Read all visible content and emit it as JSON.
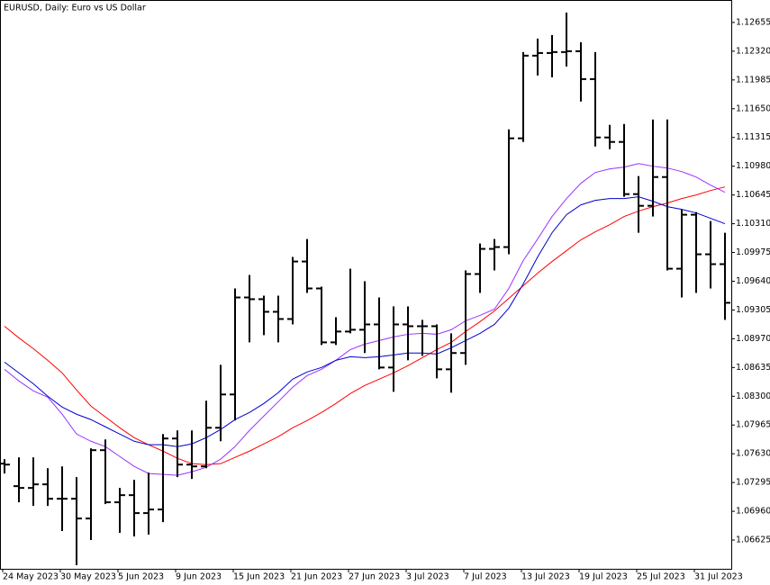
{
  "chart_data": {
    "type": "ohlc",
    "title": "EURUSD, Daily:  Euro vs US Dollar",
    "categories": [
      "24 May 2023",
      null,
      null,
      null,
      "30 May 2023",
      null,
      null,
      null,
      "5 Jun 2023",
      null,
      null,
      null,
      "9 Jun 2023",
      null,
      null,
      null,
      "15 Jun 2023",
      null,
      null,
      null,
      "21 Jun 2023",
      null,
      null,
      null,
      "27 Jun 2023",
      null,
      null,
      null,
      "3 Jul 2023",
      null,
      null,
      null,
      "7 Jul 2023",
      null,
      null,
      null,
      "13 Jul 2023",
      null,
      null,
      null,
      "19 Jul 2023",
      null,
      null,
      null,
      "25 Jul 2023",
      null,
      null,
      null,
      "31 Jul 2023",
      null,
      null
    ],
    "open": [
      1.07515,
      1.07253,
      1.07232,
      1.07274,
      1.07106,
      1.07106,
      1.06876,
      1.07672,
      1.07065,
      1.07148,
      1.06939,
      1.06981,
      1.07808,
      1.07504,
      1.07483,
      1.07933,
      1.08321,
      1.09451,
      1.09431,
      1.09284,
      1.092,
      1.0987,
      1.09556,
      1.08928,
      1.09054,
      1.09075,
      1.09137,
      1.08635,
      1.09137,
      1.09116,
      1.09116,
      1.08614,
      1.08804,
      1.09724,
      1.10017,
      1.10038,
      1.11305,
      1.12268,
      1.12299,
      1.1231,
      1.1232,
      1.11995,
      1.11315,
      1.11263,
      1.10655,
      1.10519,
      1.10854,
      1.09786,
      1.10415,
      1.09954,
      1.09839
    ],
    "high": [
      1.07567,
      1.07588,
      1.07588,
      1.07462,
      1.07483,
      1.07358,
      1.07693,
      1.07797,
      1.07232,
      1.07326,
      1.0741,
      1.0786,
      1.07902,
      1.07902,
      1.08248,
      1.08666,
      1.09556,
      1.09713,
      1.09472,
      1.09472,
      1.09923,
      1.10132,
      1.09577,
      1.09221,
      1.09786,
      1.0964,
      1.09451,
      1.09347,
      1.09347,
      1.0919,
      1.09137,
      1.09033,
      1.09766,
      1.1008,
      1.10132,
      1.11409,
      1.1231,
      1.12467,
      1.12508,
      1.1277,
      1.12425,
      1.1231,
      1.11462,
      1.11472,
      1.10865,
      1.11524,
      1.11524,
      1.10477,
      1.10446,
      1.10341,
      1.10205
    ],
    "low": [
      1.074,
      1.07065,
      1.07023,
      1.07023,
      1.0673,
      1.06332,
      1.06625,
      1.07044,
      1.06709,
      1.06667,
      1.06688,
      1.06834,
      1.07358,
      1.07337,
      1.07462,
      1.07776,
      1.08017,
      1.08928,
      1.09012,
      1.08928,
      1.09137,
      1.09504,
      1.08897,
      1.08897,
      1.09033,
      1.08804,
      1.08614,
      1.08352,
      1.08719,
      1.08771,
      1.08509,
      1.08342,
      1.08666,
      1.09504,
      1.09766,
      1.09954,
      1.11263,
      1.12037,
      1.12016,
      1.12142,
      1.11734,
      1.1121,
      1.11179,
      1.10624,
      1.10205,
      1.10394,
      1.09766,
      1.09451,
      1.09504,
      1.09556,
      1.0919
    ],
    "close": [
      1.07504,
      1.07232,
      1.07274,
      1.07106,
      1.07106,
      1.06876,
      1.07672,
      1.07065,
      1.07148,
      1.06939,
      1.06981,
      1.07808,
      1.07504,
      1.07483,
      1.07933,
      1.08321,
      1.09451,
      1.09431,
      1.09284,
      1.092,
      1.0987,
      1.09556,
      1.08928,
      1.09054,
      1.09075,
      1.09137,
      1.08635,
      1.09137,
      1.09116,
      1.09116,
      1.08614,
      1.08804,
      1.09724,
      1.10017,
      1.10038,
      1.11305,
      1.12268,
      1.12299,
      1.1231,
      1.1232,
      1.11995,
      1.11315,
      1.11263,
      1.10655,
      1.10519,
      1.10854,
      1.09786,
      1.10415,
      1.09954,
      1.09839,
      1.09389
    ],
    "bar_color": "#000000",
    "series": [
      {
        "color": "#ff0000",
        "values": [
          1.09116,
          1.0898,
          1.08855,
          1.08719,
          1.08572,
          1.08373,
          1.08185,
          1.08059,
          1.07933,
          1.07818,
          1.07735,
          1.07661,
          1.07578,
          1.07515,
          1.07504,
          1.07515,
          1.07588,
          1.07661,
          1.07745,
          1.07829,
          1.07933,
          1.08017,
          1.08111,
          1.08216,
          1.08331,
          1.08426,
          1.08499,
          1.08572,
          1.08656,
          1.0875,
          1.08844,
          1.08928,
          1.09054,
          1.09169,
          1.09294,
          1.09441,
          1.09588,
          1.09734,
          1.0987,
          1.09996,
          1.10122,
          1.10216,
          1.10299,
          1.10394,
          1.10457,
          1.10509,
          1.10551,
          1.10603,
          1.10645,
          1.10697,
          1.10739
        ]
      },
      {
        "color": "#9933ff",
        "values": [
          1.08614,
          1.08478,
          1.08363,
          1.08289,
          1.08091,
          1.0786,
          1.07776,
          1.07714,
          1.07598,
          1.07483,
          1.074,
          1.07389,
          1.07379,
          1.0742,
          1.07473,
          1.07567,
          1.07714,
          1.07902,
          1.0807,
          1.08237,
          1.08405,
          1.08541,
          1.08614,
          1.08719,
          1.08844,
          1.08907,
          1.08949,
          1.08991,
          1.09022,
          1.09033,
          1.09022,
          1.09075,
          1.09179,
          1.09242,
          1.09315,
          1.09556,
          1.09881,
          1.10132,
          1.10394,
          1.10603,
          1.10781,
          1.10907,
          1.10949,
          1.10969,
          1.11011,
          1.1098,
          1.10959,
          1.10917,
          1.10854,
          1.1076,
          1.10676
        ]
      },
      {
        "color": "#0000cc",
        "values": [
          1.08698,
          1.08572,
          1.08446,
          1.083,
          1.08174,
          1.08091,
          1.08028,
          1.07944,
          1.0786,
          1.07776,
          1.07735,
          1.07735,
          1.07714,
          1.07745,
          1.07818,
          1.07913,
          1.08028,
          1.08111,
          1.08216,
          1.08342,
          1.08499,
          1.08583,
          1.08635,
          1.08719,
          1.08761,
          1.0875,
          1.08761,
          1.08781,
          1.08804,
          1.08804,
          1.08792,
          1.08865,
          1.08949,
          1.09033,
          1.09137,
          1.09326,
          1.09609,
          1.09923,
          1.10205,
          1.10415,
          1.1053,
          1.10582,
          1.10603,
          1.10603,
          1.10624,
          1.10572,
          1.10509,
          1.10477,
          1.10436,
          1.10373,
          1.1031
        ]
      }
    ],
    "ylim": [
      1.0629,
      1.12906
    ],
    "yticks": [
      1.12655,
      {
        "value": 1.1232,
        "label": "1.12320"
      },
      1.11985,
      {
        "value": 1.1165,
        "label": "1.11650"
      },
      1.11315,
      {
        "value": 1.1098,
        "label": "1.10980"
      },
      1.10645,
      {
        "value": 1.1031,
        "label": "1.10310"
      },
      1.09975,
      {
        "value": 1.0964,
        "label": "1.09640"
      },
      1.09305,
      {
        "value": 1.0897,
        "label": "1.08970"
      },
      1.08635,
      {
        "value": 1.083,
        "label": "1.08300"
      },
      1.07965,
      {
        "value": 1.0763,
        "label": "1.07630"
      },
      1.07295,
      {
        "value": 1.0696,
        "label": "1.06960"
      },
      1.06625
    ]
  }
}
